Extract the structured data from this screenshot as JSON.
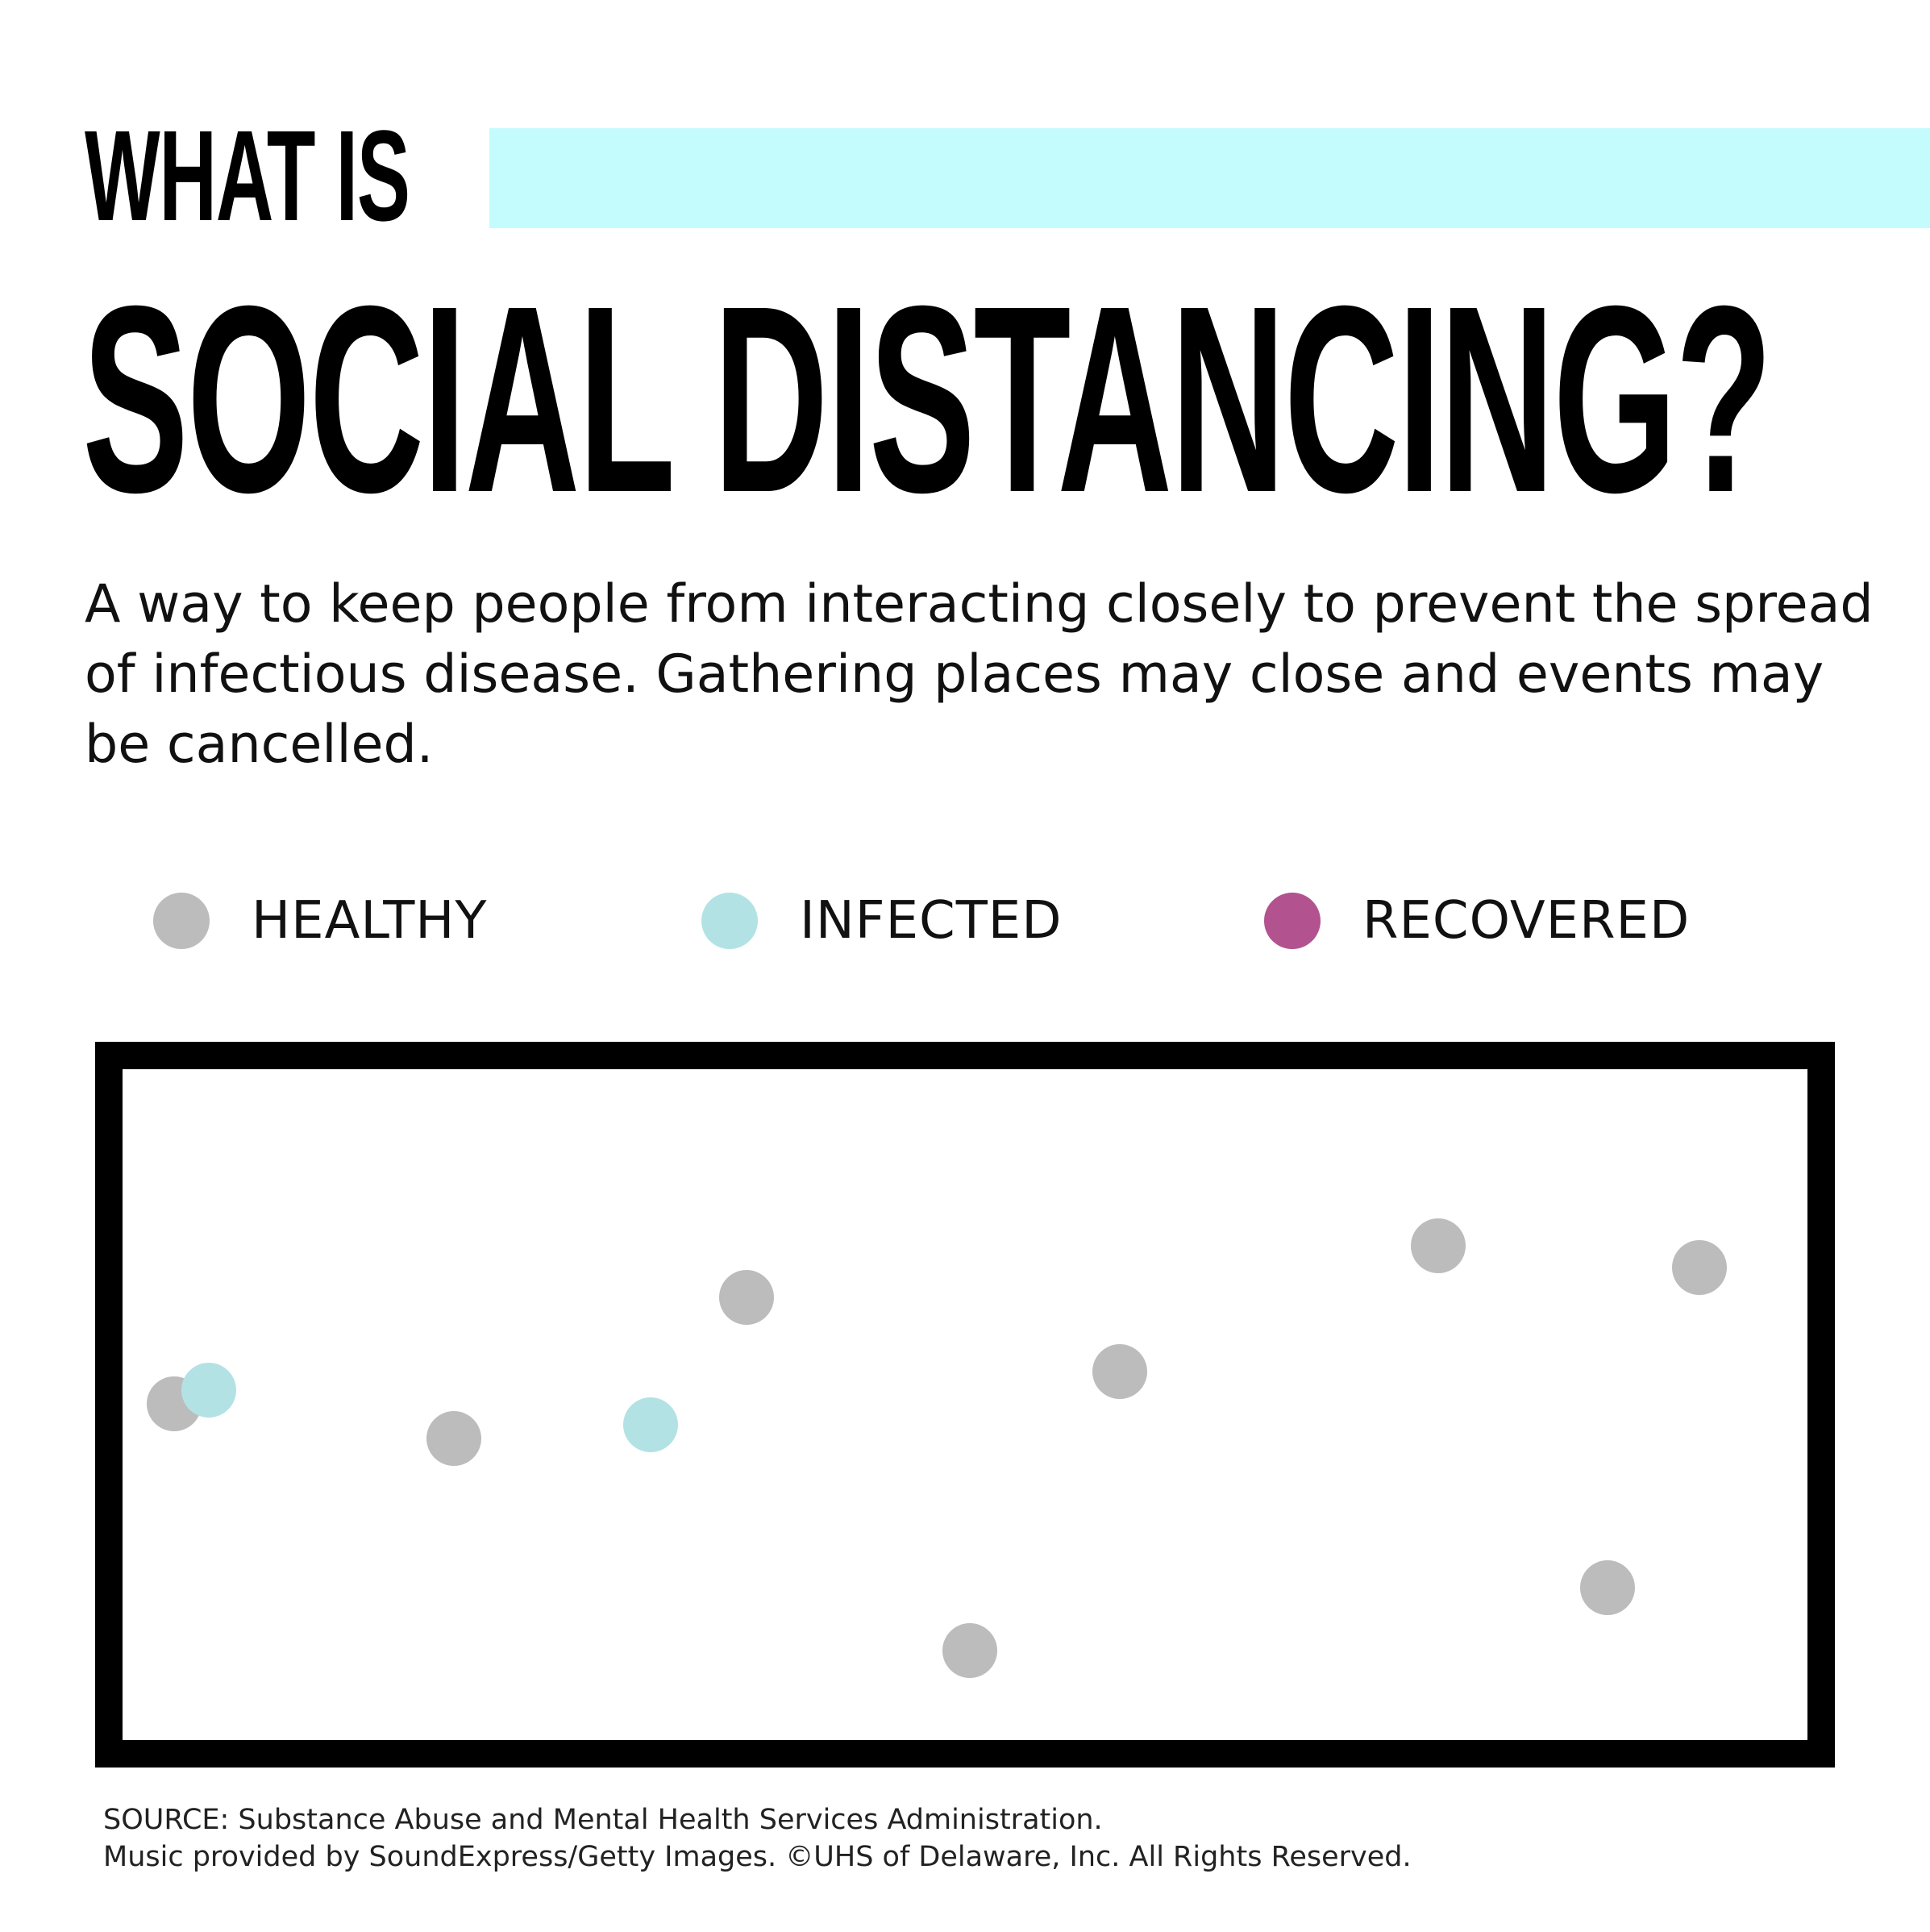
{
  "header": {
    "kicker": "WHAT IS",
    "title": "SOCIAL DISTANCING?",
    "accent_color": "#c4fcfe"
  },
  "description": "A way to keep people from interacting closely to prevent the spread of infectious disease. Gathering places may close and events may be cancelled.",
  "legend": [
    {
      "label": "HEALTHY",
      "color": "#bcbcbc"
    },
    {
      "label": "INFECTED",
      "color": "#b3e2e4"
    },
    {
      "label": "RECOVERED",
      "color": "#b2528f"
    }
  ],
  "simulation": {
    "dots": [
      {
        "status": "healthy",
        "color": "#bcbcbc"
      },
      {
        "status": "infected",
        "color": "#b3e2e4"
      },
      {
        "status": "healthy",
        "color": "#bcbcbc"
      },
      {
        "status": "infected",
        "color": "#b3e2e4"
      },
      {
        "status": "healthy",
        "color": "#bcbcbc"
      },
      {
        "status": "healthy",
        "color": "#bcbcbc"
      },
      {
        "status": "healthy",
        "color": "#bcbcbc"
      },
      {
        "status": "healthy",
        "color": "#bcbcbc"
      },
      {
        "status": "healthy",
        "color": "#bcbcbc"
      },
      {
        "status": "healthy",
        "color": "#bcbcbc"
      }
    ]
  },
  "footer": {
    "source": "SOURCE: Substance Abuse and Mental Health Services Administration.",
    "credits": "Music provided by SoundExpress/Getty Images. ©UHS of Delaware, Inc. All Rights Reserved."
  }
}
